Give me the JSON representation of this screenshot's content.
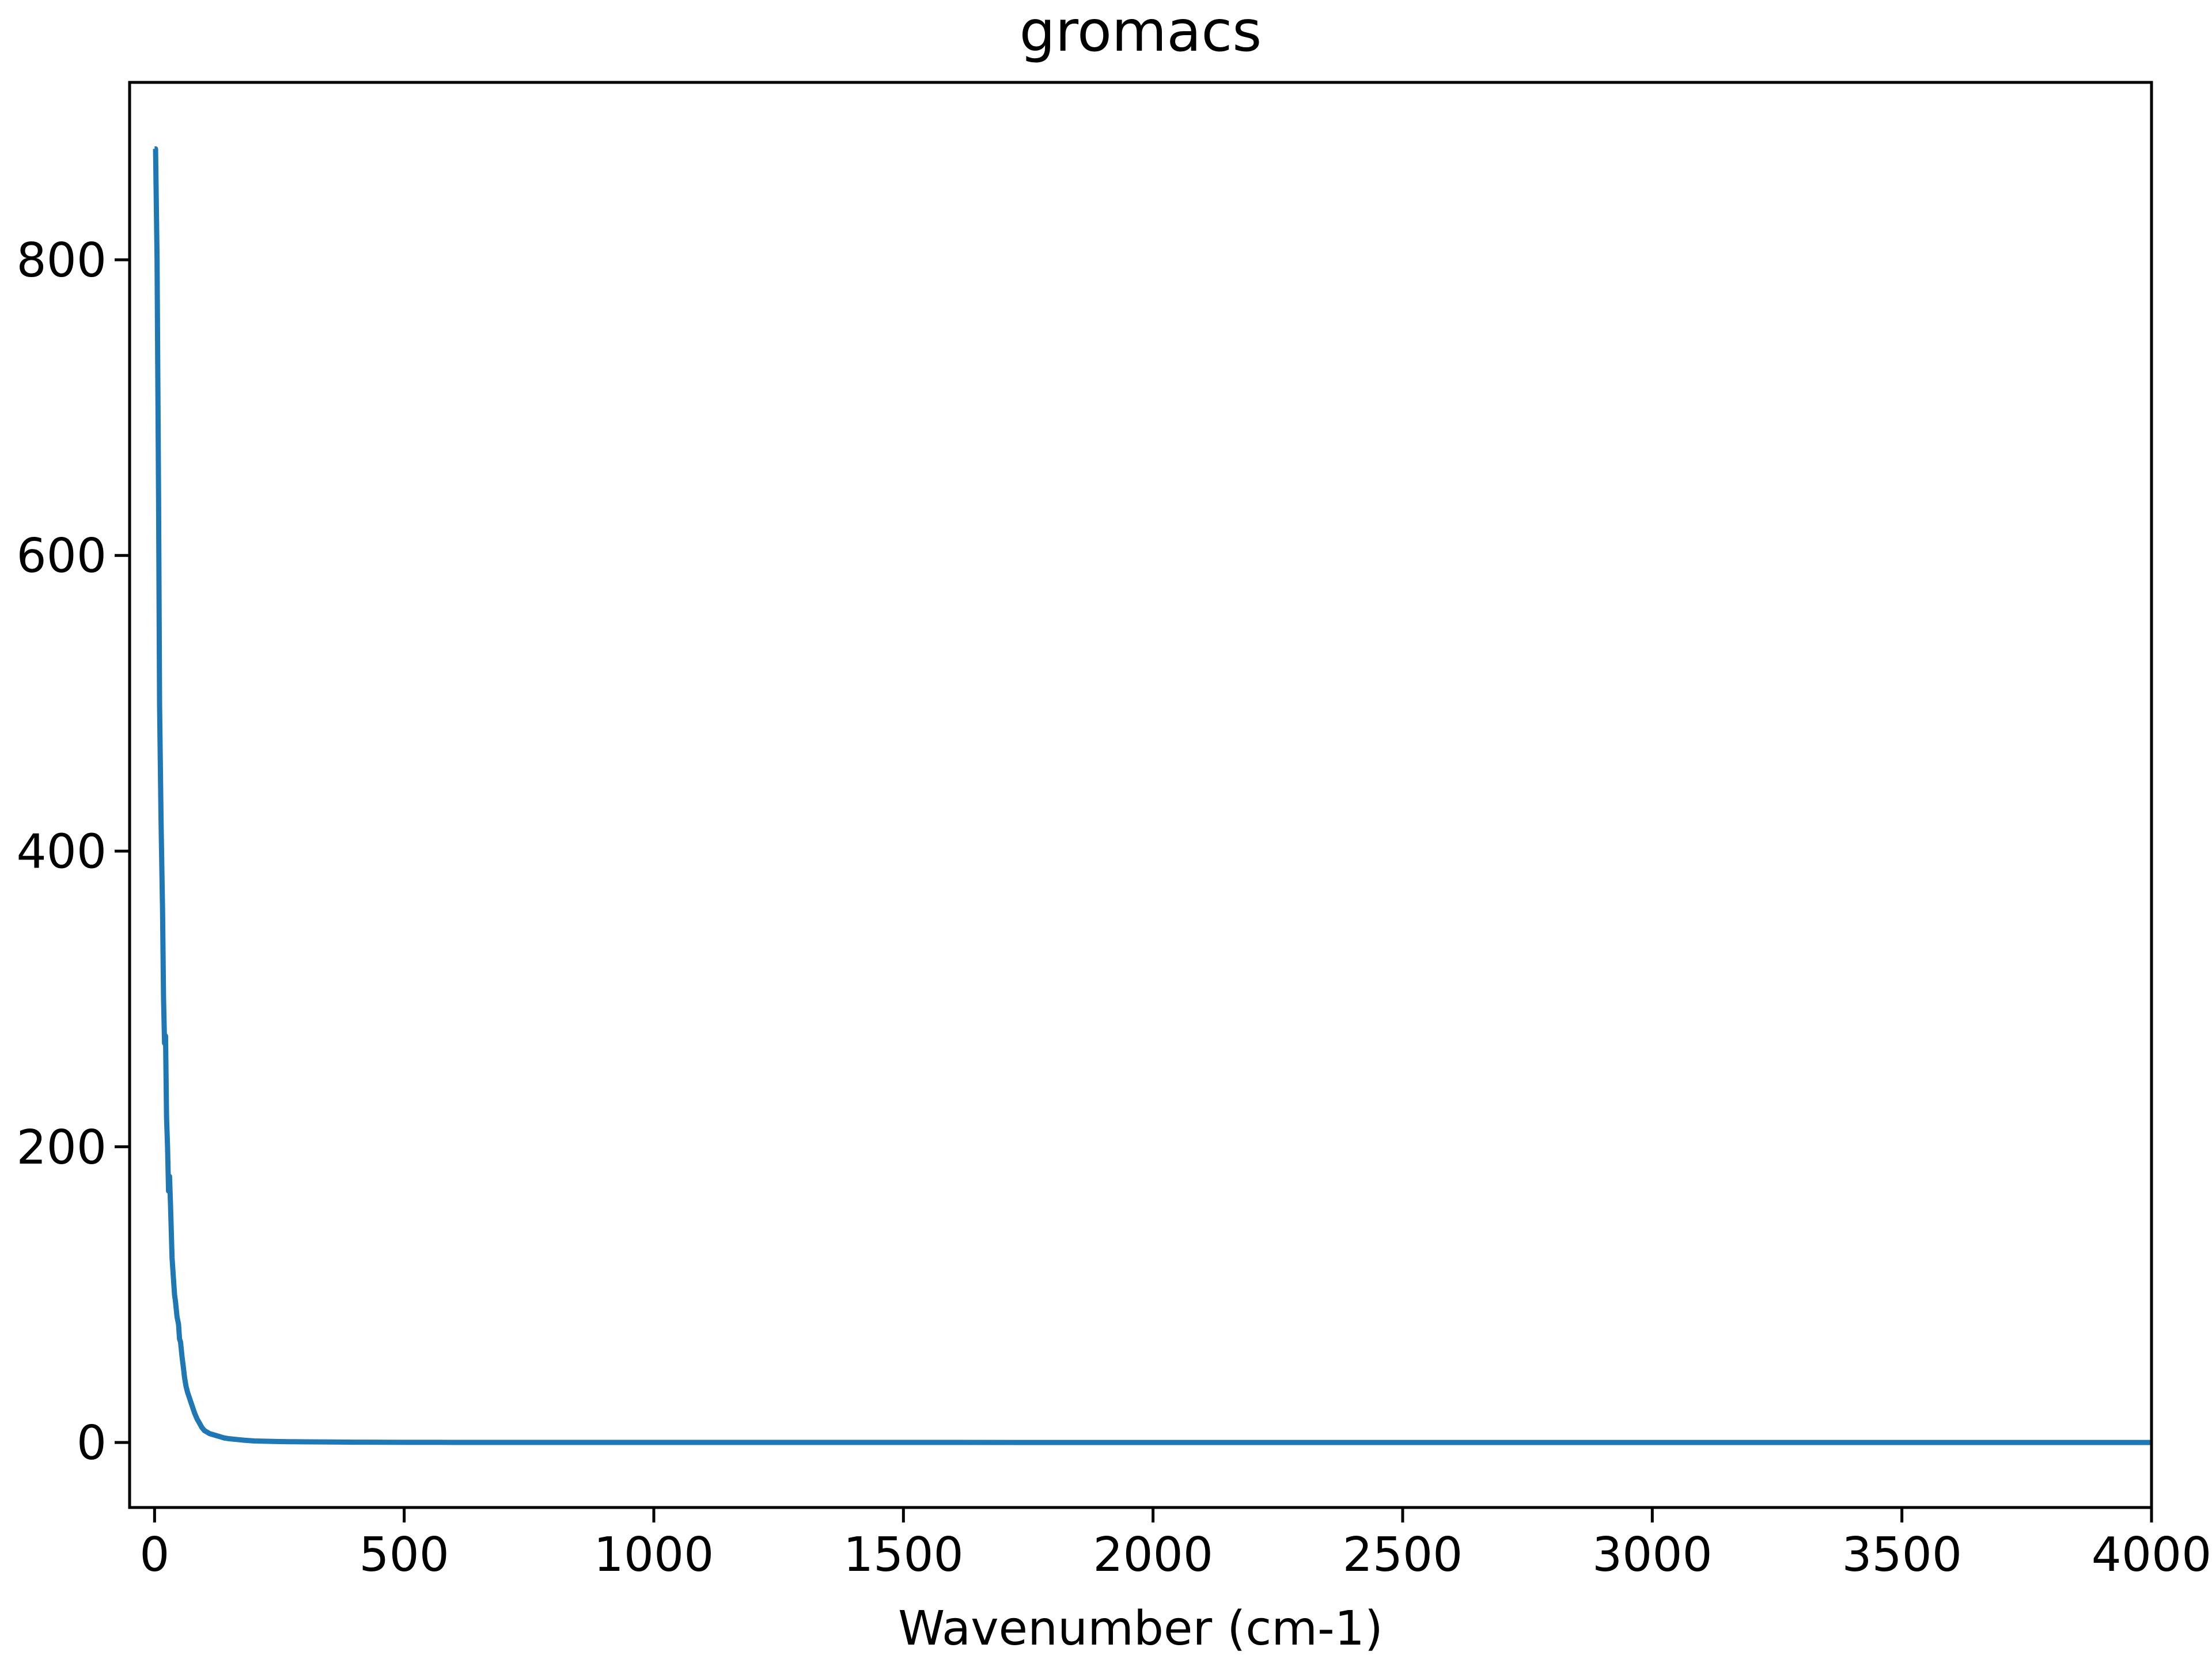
{
  "chart_data": {
    "type": "line",
    "title": "gromacs",
    "xlabel": "Wavenumber (cm-1)",
    "ylabel": "",
    "xlim": [
      -50,
      4000
    ],
    "ylim": [
      -44,
      920
    ],
    "xticks": [
      0,
      500,
      1000,
      1500,
      2000,
      2500,
      3000,
      3500,
      4000
    ],
    "yticks": [
      0,
      200,
      400,
      600,
      800
    ],
    "grid": false,
    "line_color": "#1f77b4",
    "series": [
      {
        "x": [
          0,
          2,
          5,
          8,
          10,
          13,
          16,
          18,
          20,
          22,
          24,
          26,
          28,
          30,
          32,
          35,
          38,
          40,
          42,
          45,
          48,
          50,
          52,
          55,
          58,
          60,
          63,
          66,
          70,
          75,
          80,
          85,
          90,
          95,
          100,
          110,
          120,
          130,
          140,
          150,
          165,
          180,
          200,
          225,
          250,
          300,
          350,
          400,
          500,
          600,
          800,
          1000,
          1500,
          2000,
          2500,
          3000,
          3500,
          4000
        ],
        "y": [
          875,
          875,
          800,
          640,
          500,
          420,
          360,
          300,
          270,
          275,
          220,
          200,
          170,
          180,
          160,
          125,
          110,
          100,
          95,
          85,
          80,
          70,
          68,
          58,
          50,
          44,
          38,
          34,
          30,
          25,
          20,
          16,
          13,
          10,
          8,
          6,
          5,
          4,
          3,
          2.5,
          2,
          1.5,
          1,
          0.8,
          0.6,
          0.4,
          0.3,
          0.2,
          0.1,
          0.05,
          0.03,
          0.02,
          0.01,
          0,
          0,
          0,
          0,
          0
        ]
      }
    ]
  }
}
